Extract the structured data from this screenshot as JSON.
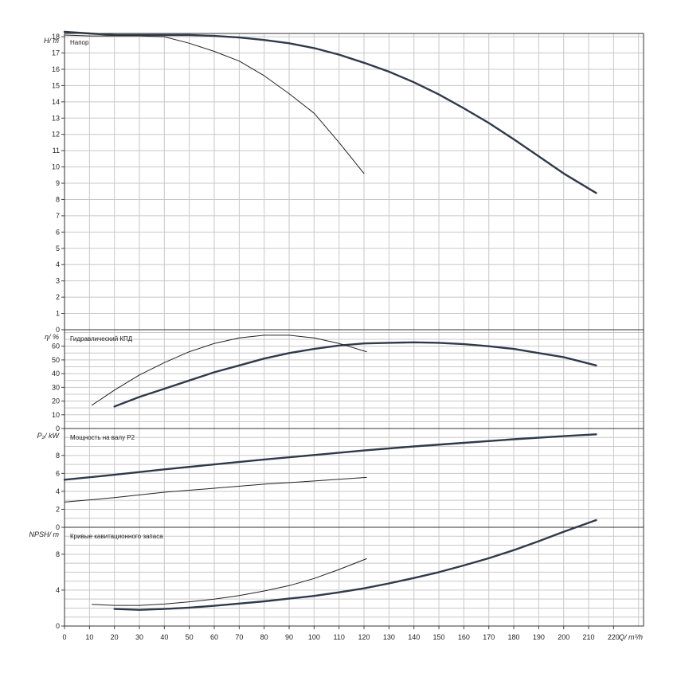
{
  "chart_data": [
    {
      "type": "line",
      "title": "Напор",
      "ylabel": "H/ m",
      "ylim": [
        0,
        18.2
      ],
      "yticks": [
        "0",
        "1",
        "2",
        "3",
        "4",
        "5",
        "6",
        "7",
        "8",
        "9",
        "10",
        "11",
        "12",
        "13",
        "14",
        "15",
        "16",
        "17",
        "18"
      ],
      "series": [
        {
          "values": [
            [
              0,
              18.3
            ],
            [
              10,
              18.2
            ],
            [
              20,
              18.1
            ],
            [
              30,
              18.1
            ],
            [
              40,
              18.1
            ],
            [
              50,
              18.1
            ],
            [
              60,
              18.05
            ],
            [
              70,
              17.95
            ],
            [
              80,
              17.8
            ],
            [
              90,
              17.6
            ],
            [
              100,
              17.3
            ],
            [
              110,
              16.9
            ],
            [
              120,
              16.4
            ],
            [
              130,
              15.85
            ],
            [
              140,
              15.2
            ],
            [
              150,
              14.45
            ],
            [
              160,
              13.6
            ],
            [
              170,
              12.7
            ],
            [
              180,
              11.7
            ],
            [
              190,
              10.65
            ],
            [
              200,
              9.6
            ],
            [
              213,
              8.4
            ]
          ]
        },
        {
          "values": [
            [
              0,
              18.1
            ],
            [
              10,
              18.05
            ],
            [
              20,
              18.05
            ],
            [
              30,
              18.05
            ],
            [
              40,
              18.0
            ],
            [
              50,
              17.6
            ],
            [
              60,
              17.1
            ],
            [
              70,
              16.5
            ],
            [
              80,
              15.6
            ],
            [
              90,
              14.5
            ],
            [
              100,
              13.3
            ],
            [
              110,
              11.5
            ],
            [
              120,
              9.6
            ]
          ]
        }
      ]
    },
    {
      "type": "line",
      "title": "Гидравлический КПД",
      "ylabel": "η/ %",
      "ylim": [
        0,
        72
      ],
      "yticks": [
        "0",
        "10",
        "20",
        "30",
        "40",
        "50",
        "60"
      ],
      "series": [
        {
          "values": [
            [
              20,
              16
            ],
            [
              30,
              23
            ],
            [
              40,
              29
            ],
            [
              50,
              35
            ],
            [
              60,
              41
            ],
            [
              70,
              46
            ],
            [
              80,
              51
            ],
            [
              90,
              55
            ],
            [
              100,
              58
            ],
            [
              110,
              60.5
            ],
            [
              120,
              62
            ],
            [
              130,
              62.5
            ],
            [
              140,
              62.8
            ],
            [
              150,
              62.5
            ],
            [
              160,
              61.5
            ],
            [
              170,
              60
            ],
            [
              180,
              58
            ],
            [
              190,
              55
            ],
            [
              200,
              52
            ],
            [
              213,
              46
            ]
          ]
        },
        {
          "values": [
            [
              11,
              17
            ],
            [
              20,
              28
            ],
            [
              30,
              39
            ],
            [
              40,
              48
            ],
            [
              50,
              56
            ],
            [
              60,
              62
            ],
            [
              70,
              66
            ],
            [
              80,
              68
            ],
            [
              90,
              68
            ],
            [
              100,
              66
            ],
            [
              110,
              62
            ],
            [
              121,
              56
            ]
          ]
        }
      ]
    },
    {
      "type": "line",
      "title": "Мощность на валу P2",
      "ylabel": "P₂/ kW",
      "ylim": [
        0,
        11
      ],
      "yticks": [
        "0",
        "2",
        "4",
        "6",
        "8"
      ],
      "series": [
        {
          "values": [
            [
              0,
              5.3
            ],
            [
              20,
              5.85
            ],
            [
              40,
              6.45
            ],
            [
              60,
              7.0
            ],
            [
              80,
              7.55
            ],
            [
              100,
              8.05
            ],
            [
              120,
              8.55
            ],
            [
              140,
              9.0
            ],
            [
              160,
              9.4
            ],
            [
              180,
              9.8
            ],
            [
              200,
              10.15
            ],
            [
              213,
              10.35
            ]
          ]
        },
        {
          "values": [
            [
              0,
              2.8
            ],
            [
              20,
              3.3
            ],
            [
              40,
              3.9
            ],
            [
              60,
              4.35
            ],
            [
              80,
              4.8
            ],
            [
              100,
              5.15
            ],
            [
              121,
              5.55
            ]
          ]
        }
      ]
    },
    {
      "type": "line",
      "title": "Кривые кавитационного запаса",
      "ylabel": "NPSH/ m",
      "xlabel": "Q/ m³/h",
      "ylim": [
        0,
        11
      ],
      "xlim": [
        0,
        232
      ],
      "yticks": [
        "0",
        "4",
        "8"
      ],
      "xticks": [
        "0",
        "10",
        "20",
        "30",
        "40",
        "50",
        "60",
        "70",
        "80",
        "90",
        "100",
        "110",
        "120",
        "130",
        "140",
        "150",
        "160",
        "170",
        "180",
        "190",
        "200",
        "210",
        "220"
      ],
      "series": [
        {
          "values": [
            [
              20,
              1.9
            ],
            [
              30,
              1.8
            ],
            [
              40,
              1.9
            ],
            [
              50,
              2.05
            ],
            [
              60,
              2.25
            ],
            [
              70,
              2.5
            ],
            [
              80,
              2.75
            ],
            [
              90,
              3.05
            ],
            [
              100,
              3.35
            ],
            [
              110,
              3.75
            ],
            [
              120,
              4.2
            ],
            [
              130,
              4.75
            ],
            [
              140,
              5.35
            ],
            [
              150,
              6.0
            ],
            [
              160,
              6.75
            ],
            [
              170,
              7.55
            ],
            [
              180,
              8.45
            ],
            [
              190,
              9.45
            ],
            [
              200,
              10.5
            ],
            [
              213,
              11.8
            ]
          ]
        },
        {
          "values": [
            [
              11,
              2.4
            ],
            [
              20,
              2.3
            ],
            [
              30,
              2.3
            ],
            [
              40,
              2.45
            ],
            [
              50,
              2.7
            ],
            [
              60,
              3.0
            ],
            [
              70,
              3.4
            ],
            [
              80,
              3.9
            ],
            [
              90,
              4.5
            ],
            [
              100,
              5.3
            ],
            [
              110,
              6.3
            ],
            [
              121,
              7.5
            ]
          ]
        }
      ]
    }
  ]
}
